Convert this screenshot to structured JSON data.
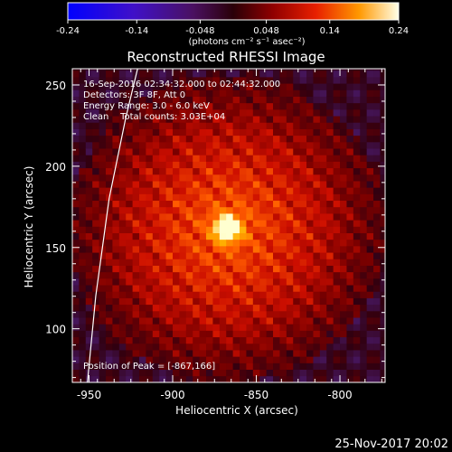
{
  "chart_data": {
    "type": "heatmap",
    "title": "Reconstructed RHESSI Image",
    "xlabel": "Heliocentric X (arcsec)",
    "ylabel": "Heliocentric Y (arcsec)",
    "xlim": [
      -960,
      -773
    ],
    "ylim": [
      67,
      260
    ],
    "x_ticks": [
      -950,
      -900,
      -850,
      -800
    ],
    "x_tick_labels": [
      "-950",
      "-900",
      "-850",
      "-800"
    ],
    "y_ticks": [
      100,
      150,
      200,
      250
    ],
    "y_tick_labels": [
      "100",
      "150",
      "200",
      "250"
    ],
    "colorbar": {
      "range": [
        -0.24,
        0.24
      ],
      "ticks": [
        -0.24,
        -0.14,
        -0.048,
        0.048,
        0.14,
        0.24
      ],
      "tick_labels": [
        "-0.24",
        "-0.14",
        "-0.048",
        "0.048",
        "0.14",
        "0.24"
      ],
      "units": "(photons cm⁻² s⁻¹ asec⁻²)"
    },
    "info_lines": [
      "16-Sep-2016 02:34:32.000 to 02:44:32.000",
      "Detectors: 3F 8F, Att 0",
      "Energy Range: 3.0 - 6.0 keV",
      "Clean    Total counts: 3.03E+04"
    ],
    "peak_label": "Position of Peak = [-867,166]",
    "peak": {
      "x": -867,
      "y": 166,
      "value": 0.24
    },
    "source_extent_arcsec": 42,
    "limb_curve": [
      [
        -951,
        67
      ],
      [
        -946,
        120
      ],
      [
        -938,
        180
      ],
      [
        -928,
        230
      ],
      [
        -921,
        260
      ]
    ],
    "background_color": "#000000",
    "colormap": [
      "#0000ff",
      "#3a0a8a",
      "#4a1a6a",
      "#300010",
      "#7a0000",
      "#cc0e00",
      "#ff5a00",
      "#ffb000",
      "#ffffd0"
    ]
  },
  "footer": {
    "date": "25-Nov-2017 20:02"
  }
}
